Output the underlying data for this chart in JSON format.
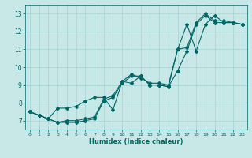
{
  "xlabel": "Humidex (Indice chaleur)",
  "background_color": "#c8e8e8",
  "grid_color": "#aad4d4",
  "line_color": "#006666",
  "xlim": [
    -0.5,
    23.5
  ],
  "ylim": [
    6.5,
    13.5
  ],
  "xticks": [
    0,
    1,
    2,
    3,
    4,
    5,
    6,
    7,
    8,
    9,
    10,
    11,
    12,
    13,
    14,
    15,
    16,
    17,
    18,
    19,
    20,
    21,
    22,
    23
  ],
  "yticks": [
    7,
    8,
    9,
    10,
    11,
    12,
    13
  ],
  "line1_x": [
    0,
    1,
    2,
    3,
    4,
    5,
    6,
    7,
    8,
    9,
    10,
    11,
    12,
    13,
    14,
    15,
    16,
    17,
    18,
    19,
    20,
    21,
    22,
    23
  ],
  "line1_y": [
    7.5,
    7.3,
    7.1,
    6.9,
    6.9,
    6.9,
    7.0,
    7.1,
    8.1,
    8.3,
    9.1,
    9.5,
    9.5,
    9.0,
    9.0,
    8.9,
    9.8,
    10.9,
    12.4,
    12.9,
    12.5,
    12.5,
    12.5,
    12.4
  ],
  "line2_x": [
    0,
    1,
    2,
    3,
    4,
    5,
    6,
    7,
    8,
    9,
    10,
    11,
    12,
    13,
    14,
    15,
    16,
    17,
    18,
    19,
    20,
    21,
    22,
    23
  ],
  "line2_y": [
    7.5,
    7.3,
    7.1,
    6.9,
    7.0,
    7.0,
    7.1,
    7.2,
    8.2,
    8.4,
    9.2,
    9.6,
    9.4,
    9.1,
    9.1,
    9.0,
    11.0,
    11.1,
    12.5,
    13.0,
    12.6,
    12.6,
    12.5,
    12.4
  ],
  "line3_x": [
    0,
    1,
    2,
    3,
    4,
    5,
    6,
    7,
    8,
    9,
    10,
    11,
    12,
    13,
    14,
    15,
    16,
    17,
    18,
    19,
    20,
    21,
    22,
    23
  ],
  "line3_y": [
    7.5,
    7.3,
    7.1,
    7.7,
    7.7,
    7.8,
    8.1,
    8.3,
    8.3,
    7.6,
    9.2,
    9.1,
    9.5,
    9.0,
    9.0,
    8.9,
    11.0,
    12.4,
    10.9,
    12.4,
    12.9,
    12.5,
    12.5,
    12.4
  ]
}
